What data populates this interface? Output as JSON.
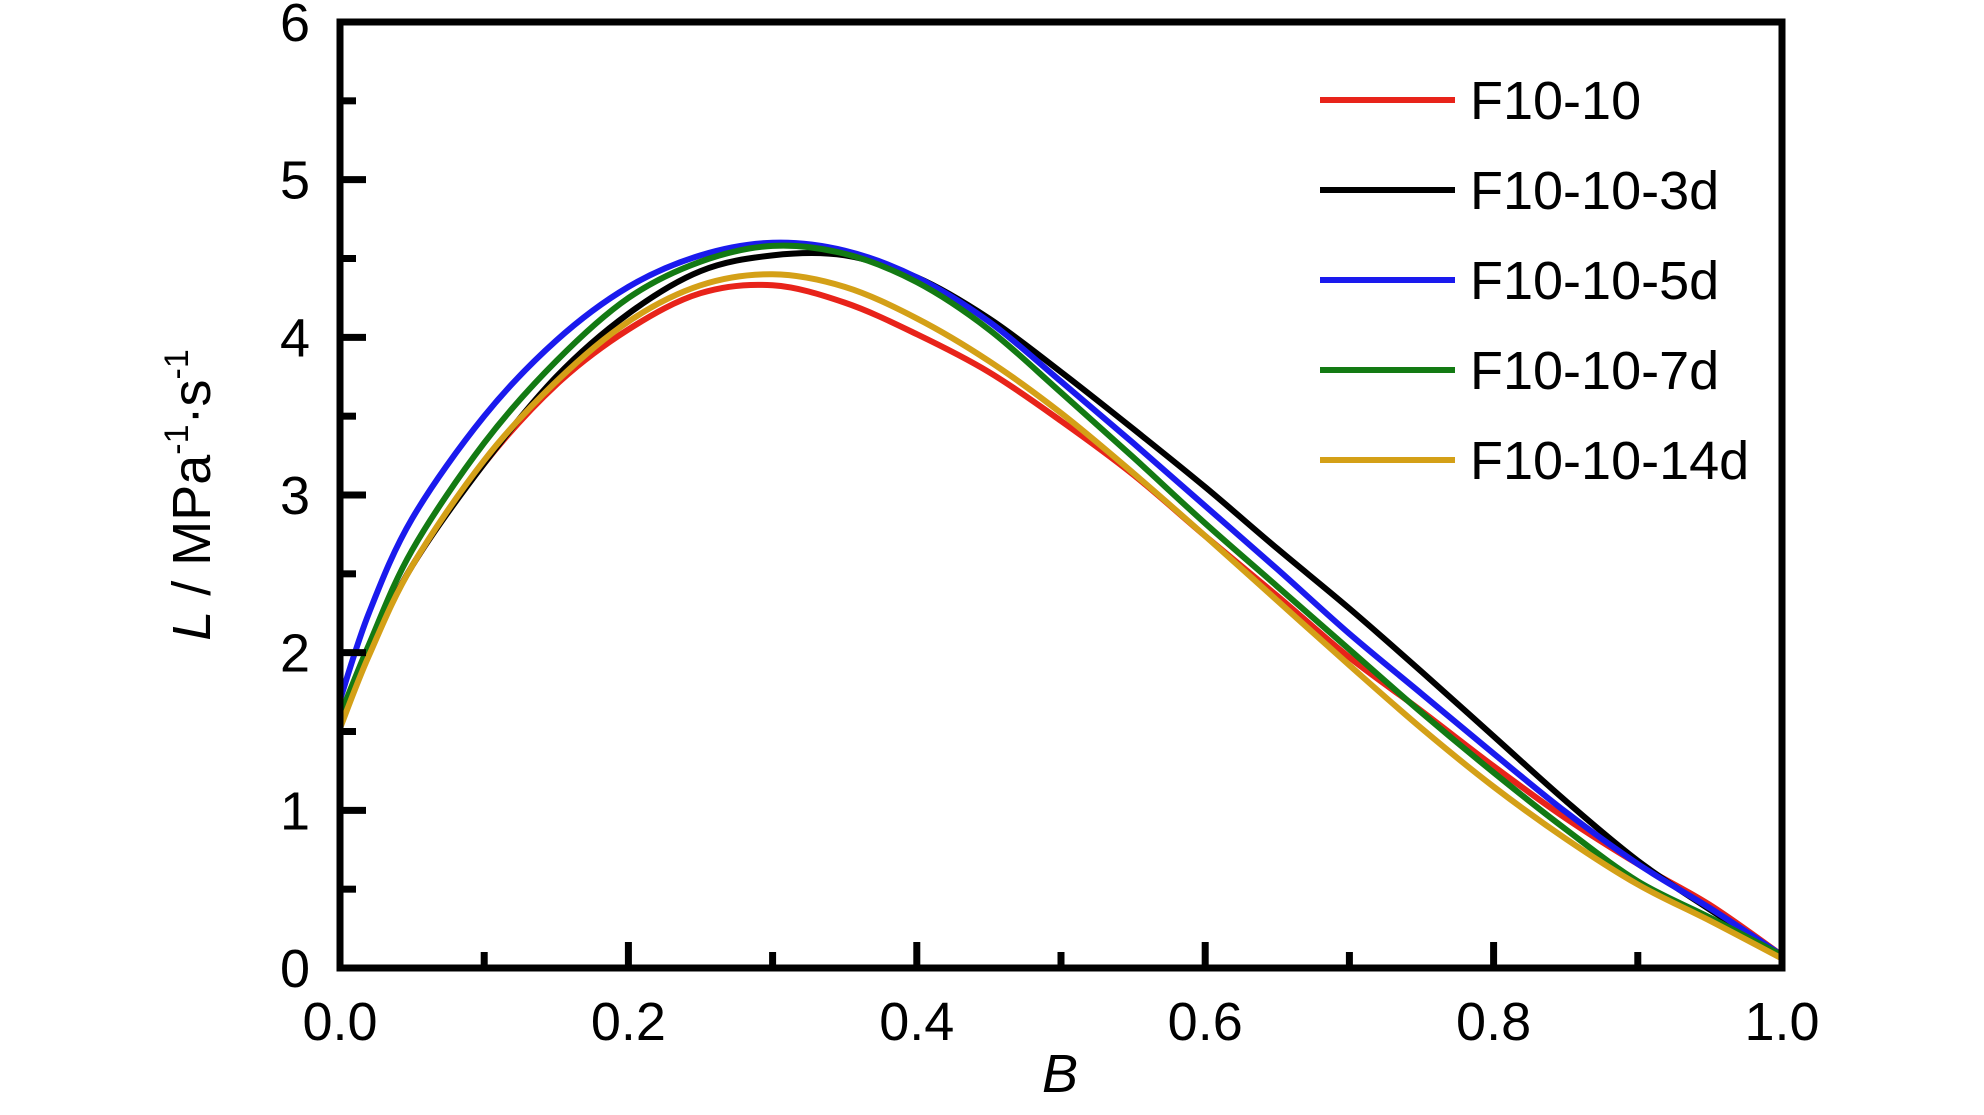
{
  "chart_data": {
    "type": "line",
    "title": "",
    "xlabel": "B",
    "ylabel": {
      "symbol": "L",
      "unit_prefix": " / MPa",
      "exp1": "-1",
      "middle": "·s",
      "exp2": "-1"
    },
    "xlim": [
      0,
      1
    ],
    "ylim": [
      0,
      6
    ],
    "xticks": [
      "0.0",
      "0.2",
      "0.4",
      "0.6",
      "0.8",
      "1.0"
    ],
    "yticks": [
      "0",
      "1",
      "2",
      "3",
      "4",
      "5",
      "6"
    ],
    "grid": false,
    "legend_position": "top-right",
    "x": [
      0.0,
      0.02,
      0.05,
      0.1,
      0.15,
      0.2,
      0.25,
      0.3,
      0.35,
      0.4,
      0.45,
      0.5,
      0.55,
      0.6,
      0.65,
      0.7,
      0.75,
      0.8,
      0.85,
      0.9,
      0.95,
      1.0
    ],
    "series": [
      {
        "name": "F10-10",
        "color": "#e8231a",
        "values": [
          1.55,
          2.0,
          2.55,
          3.2,
          3.7,
          4.05,
          4.28,
          4.33,
          4.22,
          4.02,
          3.78,
          3.47,
          3.13,
          2.74,
          2.36,
          1.97,
          1.63,
          1.28,
          0.95,
          0.66,
          0.4,
          0.08
        ]
      },
      {
        "name": "F10-10-3d",
        "color": "#000000",
        "values": [
          1.6,
          2.0,
          2.55,
          3.2,
          3.75,
          4.15,
          4.42,
          4.52,
          4.52,
          4.38,
          4.12,
          3.78,
          3.42,
          3.05,
          2.66,
          2.28,
          1.88,
          1.47,
          1.06,
          0.68,
          0.37,
          0.08
        ]
      },
      {
        "name": "F10-10-5d",
        "color": "#1a1aee",
        "values": [
          1.7,
          2.25,
          2.85,
          3.5,
          3.98,
          4.32,
          4.52,
          4.6,
          4.55,
          4.38,
          4.1,
          3.72,
          3.33,
          2.93,
          2.53,
          2.12,
          1.74,
          1.36,
          0.99,
          0.66,
          0.38,
          0.08
        ]
      },
      {
        "name": "F10-10-7d",
        "color": "#137a13",
        "values": [
          1.6,
          2.05,
          2.65,
          3.33,
          3.85,
          4.25,
          4.48,
          4.58,
          4.53,
          4.35,
          4.05,
          3.65,
          3.24,
          2.82,
          2.42,
          2.02,
          1.62,
          1.24,
          0.88,
          0.55,
          0.32,
          0.08
        ]
      },
      {
        "name": "F10-10-14d",
        "color": "#d4a017",
        "values": [
          1.52,
          1.98,
          2.55,
          3.22,
          3.72,
          4.1,
          4.33,
          4.4,
          4.32,
          4.12,
          3.85,
          3.52,
          3.14,
          2.74,
          2.33,
          1.92,
          1.52,
          1.15,
          0.82,
          0.53,
          0.3,
          0.06
        ]
      }
    ]
  }
}
